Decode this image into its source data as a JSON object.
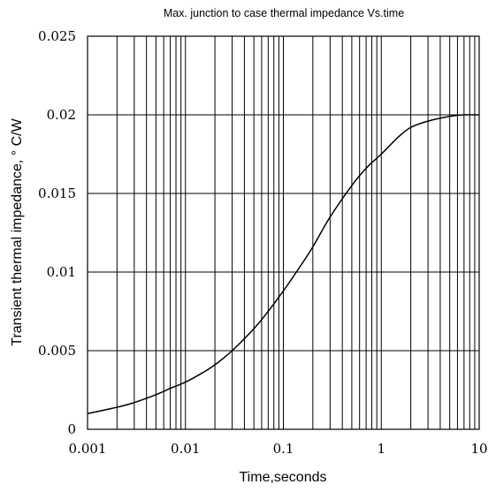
{
  "chart_data": {
    "type": "line",
    "title": "Max. junction to case thermal impedance Vs.time",
    "xlabel": "Time,seconds",
    "ylabel": "Transient thermal impedance, ° C/W",
    "x_scale": "log",
    "xlim": [
      0.001,
      10
    ],
    "ylim": [
      0,
      0.025
    ],
    "x_ticks": [
      "0.001",
      "0.01",
      "0.1",
      "1",
      "10"
    ],
    "y_ticks": [
      "0",
      "0.005",
      "0.01",
      "0.015",
      "0.02",
      "0.025"
    ],
    "grid": true,
    "legend": "none",
    "line_color": "#000000",
    "series": [
      {
        "x": [
          0.001,
          0.002,
          0.003,
          0.005,
          0.007,
          0.01,
          0.015,
          0.02,
          0.03,
          0.05,
          0.07,
          0.1,
          0.15,
          0.2,
          0.3,
          0.5,
          0.7,
          1,
          1.5,
          2,
          3,
          5,
          7,
          10
        ],
        "y": [
          0.001,
          0.0014,
          0.0017,
          0.0022,
          0.0026,
          0.003,
          0.0036,
          0.0041,
          0.005,
          0.0064,
          0.0075,
          0.0088,
          0.0104,
          0.0116,
          0.0135,
          0.0155,
          0.0166,
          0.0175,
          0.0186,
          0.0192,
          0.0196,
          0.0199,
          0.02,
          0.02
        ]
      }
    ]
  }
}
